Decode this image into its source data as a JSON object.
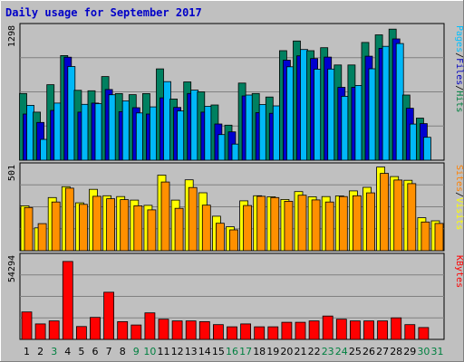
{
  "chart_data": {
    "type": "bar",
    "title": "Daily usage for September 2017",
    "days": [
      "1",
      "2",
      "3",
      "4",
      "5",
      "6",
      "7",
      "8",
      "9",
      "10",
      "11",
      "12",
      "13",
      "14",
      "15",
      "16",
      "17",
      "18",
      "19",
      "20",
      "21",
      "22",
      "23",
      "24",
      "25",
      "26",
      "27",
      "28",
      "29",
      "30",
      "31"
    ],
    "weekend_days": [
      "3",
      "9",
      "10",
      "16",
      "17",
      "23",
      "24",
      "30",
      "31"
    ],
    "day_color": "#000000",
    "weekend_color": "#008040",
    "panels": [
      {
        "name": "pages-files-hits",
        "ymax": 1298,
        "ymax_label": "1298",
        "legend": [
          "Pages",
          "/",
          "Files",
          "/",
          "Hits"
        ],
        "legend_colors": [
          "#00c0ff",
          "#000000",
          "#0000c0",
          "#000000",
          "#008040"
        ],
        "series": [
          {
            "name": "Hits",
            "color": "#008060",
            "values": [
              651,
              469,
              736,
              1021,
              682,
              677,
              816,
              650,
              639,
              650,
              891,
              597,
              764,
              667,
              539,
              342,
              752,
              651,
              616,
              1068,
              1163,
              1068,
              1098,
              929,
              929,
              1149,
              1223,
              1279,
              636,
              411,
              0
            ]
          },
          {
            "name": "Files",
            "color": "#0000d0",
            "values": [
              450,
              368,
              486,
              1005,
              469,
              557,
              690,
              473,
              512,
              450,
              608,
              515,
              651,
              469,
              353,
              276,
              627,
              464,
              457,
              976,
              1018,
              992,
              1006,
              711,
              711,
              1015,
              1091,
              1183,
              507,
              357,
              0
            ]
          },
          {
            "name": "Pages",
            "color": "#00b8f8",
            "values": [
              535,
              203,
              557,
              914,
              545,
              552,
              638,
              578,
              461,
              520,
              766,
              480,
              683,
              525,
              250,
              157,
              636,
              543,
              530,
              911,
              1080,
              888,
              889,
              623,
              729,
              892,
              1111,
              1138,
              352,
              223,
              0
            ]
          }
        ]
      },
      {
        "name": "visits-sites",
        "ymax": 501,
        "ymax_label": "501",
        "legend": [
          "Sites",
          "/",
          "Visits"
        ],
        "legend_colors": [
          "#ff8000",
          "#000000",
          "#ffff00"
        ],
        "series": [
          {
            "name": "Visits",
            "color": "#ffff00",
            "values": [
              267,
              136,
              316,
              381,
              285,
              365,
              327,
              322,
              301,
              270,
              450,
              301,
              422,
              345,
              205,
              142,
              297,
              327,
              321,
              305,
              352,
              321,
              322,
              326,
              356,
              377,
              498,
              441,
              419,
              196,
              178
            ]
          },
          {
            "name": "Sites",
            "color": "#ff9000",
            "values": [
              257,
              161,
              290,
              372,
              276,
              324,
              309,
              304,
              267,
              243,
              409,
              252,
              376,
              271,
              163,
              124,
              269,
              324,
              316,
              294,
              330,
              302,
              290,
              322,
              327,
              344,
              460,
              421,
              399,
              171,
              162
            ]
          }
        ]
      },
      {
        "name": "kbytes",
        "ymax": 54294,
        "ymax_label": "54294",
        "legend": [
          "KBytes"
        ],
        "legend_colors": [
          "#ff0000"
        ],
        "series": [
          {
            "name": "KBytes",
            "color": "#ff0000",
            "values": [
              18100,
              10200,
              12200,
              51400,
              8500,
              14500,
              31100,
              11700,
              9500,
              17500,
              13300,
              12200,
              12200,
              11700,
              9700,
              8300,
              10200,
              8300,
              8300,
              11300,
              11300,
              12200,
              15400,
              13300,
              12200,
              12200,
              12200,
              14200,
              9700,
              7800,
              0
            ]
          }
        ]
      }
    ]
  }
}
